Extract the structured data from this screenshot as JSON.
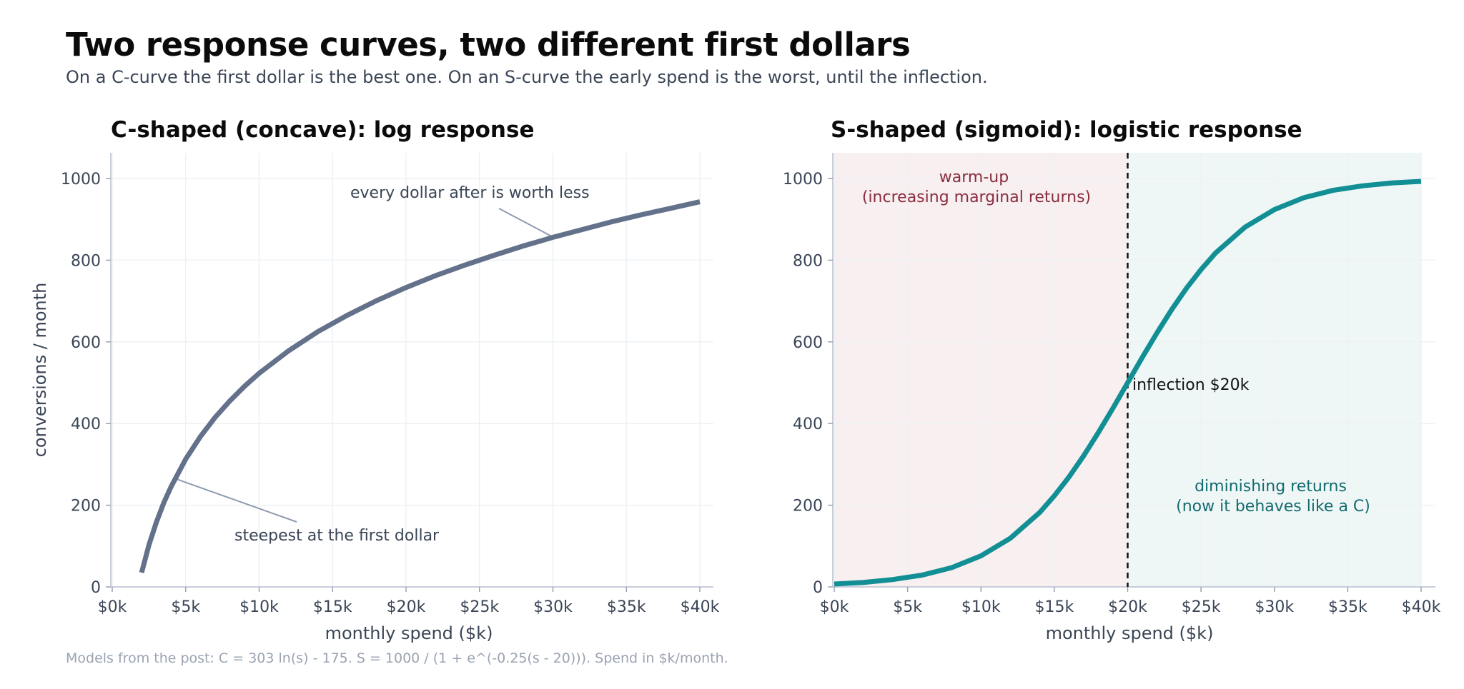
{
  "title": "Two response curves, two different first dollars",
  "subtitle": "On a C-curve the first dollar is the best one. On an S-curve the early spend is the worst, until the inflection.",
  "footnote": "Models from the post: C = 303 ln(s) - 175.  S = 1000 / (1 + e^(-0.25(s - 20))).  Spend in $k/month.",
  "chart_data": [
    {
      "type": "line",
      "title": "C-shaped (concave): log response",
      "xlabel": "monthly spend ($k)",
      "ylabel": "conversions / month",
      "xlim": [
        0,
        40
      ],
      "ylim": [
        0,
        1000
      ],
      "x_ticks": [
        0,
        5,
        10,
        15,
        20,
        25,
        30,
        35,
        40
      ],
      "x_tick_labels": [
        "$0k",
        "$5k",
        "$10k",
        "$15k",
        "$20k",
        "$25k",
        "$30k",
        "$35k",
        "$40k"
      ],
      "y_ticks": [
        0,
        200,
        400,
        600,
        800,
        1000
      ],
      "y_tick_labels": [
        "0",
        "200",
        "400",
        "600",
        "800",
        "1000"
      ],
      "grid": true,
      "series": [
        {
          "color": "#64718a",
          "x": [
            2,
            2.5,
            3,
            3.5,
            4,
            5,
            6,
            7,
            8,
            9,
            10,
            12,
            14,
            16,
            18,
            20,
            22,
            24,
            26,
            28,
            30,
            32,
            34,
            36,
            38,
            40
          ],
          "y": [
            35,
            103,
            158,
            205,
            245,
            313,
            368,
            415,
            455,
            491,
            523,
            578,
            625,
            665,
            701,
            733,
            762,
            788,
            812,
            835,
            856,
            875,
            894,
            911,
            927,
            943
          ]
        }
      ],
      "annotations": [
        {
          "text": "every dollar after is worth less",
          "color": "#3a4556",
          "point": [
            30,
            856
          ]
        },
        {
          "text": "steepest at the first dollar",
          "color": "#3a4556",
          "point": [
            4.3,
            265
          ]
        }
      ]
    },
    {
      "type": "line",
      "title": "S-shaped (sigmoid): logistic response",
      "xlabel": "monthly spend ($k)",
      "ylabel": "",
      "xlim": [
        0,
        40
      ],
      "ylim": [
        0,
        1000
      ],
      "x_ticks": [
        0,
        5,
        10,
        15,
        20,
        25,
        30,
        35,
        40
      ],
      "x_tick_labels": [
        "$0k",
        "$5k",
        "$10k",
        "$15k",
        "$20k",
        "$25k",
        "$30k",
        "$35k",
        "$40k"
      ],
      "y_ticks": [
        0,
        200,
        400,
        600,
        800,
        1000
      ],
      "y_tick_labels": [
        "0",
        "200",
        "400",
        "600",
        "800",
        "1000"
      ],
      "grid": true,
      "series": [
        {
          "color": "#128f94",
          "x": [
            0,
            2,
            4,
            6,
            8,
            10,
            12,
            14,
            15,
            16,
            17,
            18,
            19,
            20,
            21,
            22,
            23,
            24,
            25,
            26,
            28,
            30,
            32,
            34,
            36,
            38,
            40
          ],
          "y": [
            7,
            11,
            18,
            29,
            47,
            76,
            119,
            182,
            223,
            269,
            321,
            378,
            438,
            500,
            562,
            622,
            679,
            731,
            777,
            818,
            881,
            924,
            953,
            971,
            982,
            989,
            993
          ]
        }
      ],
      "regions": [
        {
          "x": [
            0,
            20
          ],
          "color": "#f8eff1"
        },
        {
          "x": [
            20,
            40
          ],
          "color": "#eef7f6"
        }
      ],
      "vline": {
        "x": 20,
        "color": "#111111"
      },
      "annotations": [
        {
          "lines": [
            "warm-up",
            "(increasing marginal returns)"
          ],
          "color": "#8a2c3c"
        },
        {
          "text": "inflection $20k",
          "color": "#111111"
        },
        {
          "lines": [
            "diminishing returns",
            "(now it behaves like a C)"
          ],
          "color": "#136b6e"
        }
      ]
    }
  ]
}
